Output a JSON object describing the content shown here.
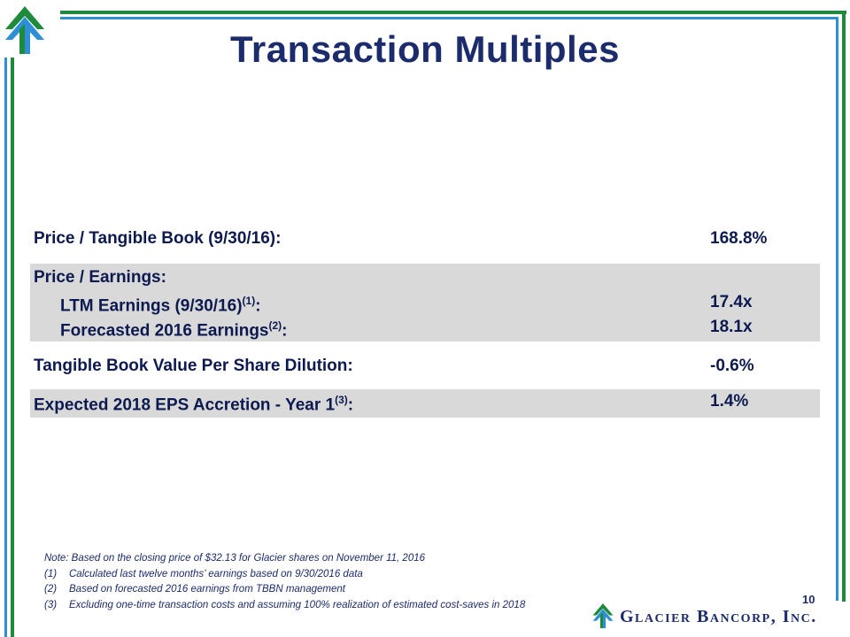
{
  "colors": {
    "navy": "#1c2b6b",
    "green": "#1e8a3c",
    "blue": "#2f8fd6",
    "row_shade": "#d9d9d9"
  },
  "title": "Transaction Multiples",
  "table": {
    "ptb": {
      "label": "Price / Tangible Book (9/30/16):",
      "value": "168.8%"
    },
    "pe": {
      "label": "Price / Earnings:",
      "ltm_label": "LTM Earnings (9/30/16)",
      "ltm_sup": "(1)",
      "ltm_value": "17.4x",
      "fc_label": "Forecasted 2016 Earnings",
      "fc_sup": "(2)",
      "fc_value": "18.1x"
    },
    "dilution": {
      "label": "Tangible Book Value Per Share Dilution:",
      "value": "-0.6%"
    },
    "eps": {
      "label": "Expected 2018 EPS Accretion - Year 1",
      "sup": "(3)",
      "value": "1.4%"
    },
    "colon": ":"
  },
  "notes": {
    "main": "Note: Based on the closing price of $32.13 for Glacier shares on November 11, 2016",
    "items": [
      {
        "num": "(1)",
        "text": "Calculated last twelve months’ earnings based on 9/30/2016 data"
      },
      {
        "num": "(2)",
        "text": "Based on forecasted 2016 earnings from TBBN management"
      },
      {
        "num": "(3)",
        "text": "Excluding one-time transaction costs and assuming 100% realization of estimated cost-saves in 2018"
      }
    ]
  },
  "page_number": "10",
  "brand": "Glacier Bancorp, Inc.",
  "icons": {
    "logo": "glacier-mountain-logo-icon"
  }
}
